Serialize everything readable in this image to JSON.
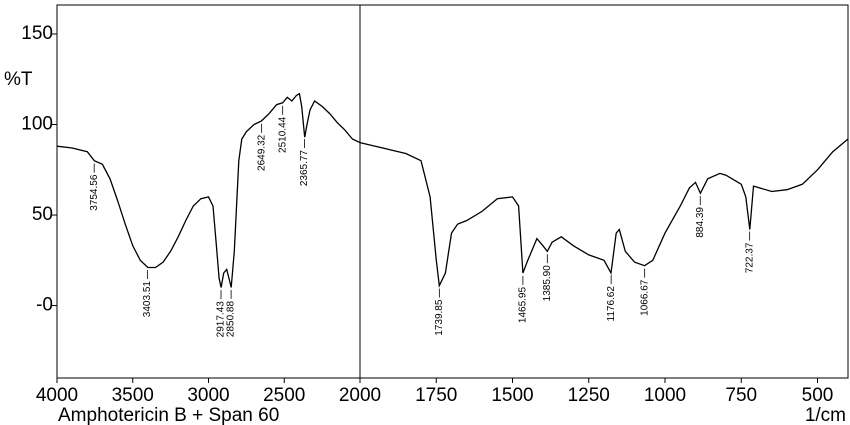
{
  "chart_data": {
    "type": "line",
    "title": "Amphotericin B + Span 60",
    "y_label": "%T",
    "x_label": "1/cm",
    "xlim": [
      4000,
      400
    ],
    "x_split": 2000,
    "ylim": [
      -40,
      166
    ],
    "xticks": [
      4000,
      3500,
      3000,
      2500,
      2000,
      1750,
      1500,
      1250,
      1000,
      750,
      500
    ],
    "yticks": [
      {
        "value": 0,
        "label": "-0"
      },
      50,
      100,
      150
    ],
    "color": "#000000",
    "x": [
      4000,
      3900,
      3800,
      3754,
      3700,
      3650,
      3600,
      3550,
      3500,
      3450,
      3400,
      3350,
      3300,
      3250,
      3200,
      3150,
      3100,
      3050,
      3000,
      2970,
      2950,
      2930,
      2917,
      2900,
      2880,
      2865,
      2850,
      2830,
      2800,
      2780,
      2750,
      2700,
      2650,
      2600,
      2550,
      2510,
      2480,
      2450,
      2420,
      2400,
      2385,
      2365,
      2350,
      2330,
      2300,
      2250,
      2200,
      2150,
      2100,
      2050,
      2000,
      1950,
      1900,
      1850,
      1800,
      1770,
      1750,
      1740,
      1720,
      1700,
      1680,
      1650,
      1600,
      1550,
      1500,
      1480,
      1466,
      1450,
      1420,
      1400,
      1386,
      1370,
      1340,
      1300,
      1250,
      1200,
      1177,
      1160,
      1150,
      1130,
      1100,
      1067,
      1040,
      1000,
      950,
      920,
      900,
      884,
      860,
      820,
      800,
      780,
      750,
      735,
      722,
      710,
      690,
      650,
      600,
      550,
      500,
      450,
      400
    ],
    "values": [
      88,
      87,
      85,
      80,
      78,
      70,
      58,
      45,
      33,
      25,
      21,
      21,
      24,
      30,
      38,
      47,
      55,
      59,
      60,
      55,
      35,
      15,
      10,
      18,
      20,
      15,
      10,
      30,
      80,
      92,
      96,
      100,
      102,
      106,
      111,
      112,
      115,
      113,
      116,
      117,
      110,
      93,
      100,
      108,
      113,
      110,
      106,
      101,
      97,
      92,
      90,
      88,
      86,
      84,
      80,
      60,
      25,
      11,
      18,
      40,
      45,
      47,
      52,
      59,
      60,
      55,
      18,
      25,
      37,
      33,
      30,
      35,
      38,
      33,
      28,
      25,
      18,
      40,
      42,
      30,
      24,
      22,
      25,
      40,
      55,
      65,
      68,
      62,
      70,
      73,
      72,
      70,
      67,
      60,
      42,
      66,
      65,
      63,
      64,
      67,
      75,
      85,
      92
    ],
    "peaks": [
      3754.56,
      3403.51,
      2917.43,
      2850.88,
      2649.32,
      2510.44,
      2365.77,
      1739.85,
      1465.95,
      1385.9,
      1176.62,
      1066.67,
      884.39,
      722.37
    ],
    "peak_labels": [
      "3754.56",
      "3403.51",
      "2917.43",
      "2850.88",
      "2649.32",
      "2510.44",
      "2365.77",
      "1739.85",
      "1465.95",
      "1385.90",
      "1176.62",
      "1066.67",
      "884.39",
      "722.37"
    ]
  }
}
